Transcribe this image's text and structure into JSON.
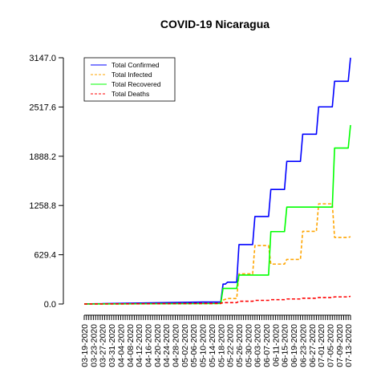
{
  "chart_data": {
    "type": "line",
    "title": "COVID-19 Nicaragua",
    "xlabel": "",
    "ylabel": "",
    "ylim": [
      0,
      3147.0
    ],
    "yticks": [
      "0.0",
      "629.4",
      "1258.8",
      "1888.2",
      "2517.6",
      "3147.0"
    ],
    "ytick_values": [
      0,
      629.4,
      1258.8,
      1888.2,
      2517.6,
      3147.0
    ],
    "x_tick_labels": [
      "03-19-2020",
      "03-23-2020",
      "03-27-2020",
      "03-31-2020",
      "04-04-2020",
      "04-08-2020",
      "04-12-2020",
      "04-16-2020",
      "04-20-2020",
      "04-24-2020",
      "04-28-2020",
      "05-02-2020",
      "05-06-2020",
      "05-10-2020",
      "05-14-2020",
      "05-18-2020",
      "05-22-2020",
      "05-26-2020",
      "05-30-2020",
      "06-03-2020",
      "06-07-2020",
      "06-11-2020",
      "06-15-2020",
      "06-19-2020",
      "06-23-2020",
      "06-27-2020",
      "07-01-2020",
      "07-05-2020",
      "07-09-2020",
      "07-13-2020"
    ],
    "x_range": [
      "03-19-2020",
      "07-14-2020"
    ],
    "grid": false,
    "legend_position": "top-left",
    "series": [
      {
        "name": "Total Confirmed",
        "color": "#0000ff",
        "style": "solid",
        "points": [
          [
            "03-19-2020",
            1
          ],
          [
            "05-10-2020",
            25
          ],
          [
            "05-18-2020",
            25
          ],
          [
            "05-19-2020",
            254
          ],
          [
            "05-20-2020",
            254
          ],
          [
            "05-21-2020",
            279
          ],
          [
            "05-25-2020",
            279
          ],
          [
            "05-26-2020",
            759
          ],
          [
            "06-01-2020",
            759
          ],
          [
            "06-02-2020",
            1118
          ],
          [
            "06-08-2020",
            1118
          ],
          [
            "06-09-2020",
            1464
          ],
          [
            "06-15-2020",
            1464
          ],
          [
            "06-16-2020",
            1823
          ],
          [
            "06-22-2020",
            1823
          ],
          [
            "06-23-2020",
            2170
          ],
          [
            "06-29-2020",
            2170
          ],
          [
            "06-30-2020",
            2519
          ],
          [
            "07-06-2020",
            2519
          ],
          [
            "07-07-2020",
            2846
          ],
          [
            "07-13-2020",
            2846
          ],
          [
            "07-14-2020",
            3147
          ]
        ]
      },
      {
        "name": "Total Infected",
        "color": "#ffa500",
        "style": "dashed",
        "points": [
          [
            "03-19-2020",
            1
          ],
          [
            "05-18-2020",
            5
          ],
          [
            "05-19-2020",
            50
          ],
          [
            "05-21-2020",
            70
          ],
          [
            "05-25-2020",
            70
          ],
          [
            "05-26-2020",
            385
          ],
          [
            "06-01-2020",
            385
          ],
          [
            "06-02-2020",
            746
          ],
          [
            "06-08-2020",
            746
          ],
          [
            "06-09-2020",
            510
          ],
          [
            "06-15-2020",
            510
          ],
          [
            "06-16-2020",
            570
          ],
          [
            "06-22-2020",
            570
          ],
          [
            "06-23-2020",
            928
          ],
          [
            "06-29-2020",
            928
          ],
          [
            "06-30-2020",
            1280
          ],
          [
            "07-06-2020",
            1280
          ],
          [
            "07-07-2020",
            850
          ],
          [
            "07-13-2020",
            850
          ],
          [
            "07-14-2020",
            860
          ]
        ]
      },
      {
        "name": "Total Recovered",
        "color": "#00ff00",
        "style": "solid",
        "points": [
          [
            "03-19-2020",
            0
          ],
          [
            "05-18-2020",
            7
          ],
          [
            "05-19-2020",
            199
          ],
          [
            "05-25-2020",
            199
          ],
          [
            "05-26-2020",
            370
          ],
          [
            "06-08-2020",
            370
          ],
          [
            "06-09-2020",
            925
          ],
          [
            "06-15-2020",
            925
          ],
          [
            "06-16-2020",
            1238
          ],
          [
            "07-06-2020",
            1238
          ],
          [
            "07-07-2020",
            1993
          ],
          [
            "07-13-2020",
            1993
          ],
          [
            "07-14-2020",
            2287
          ]
        ]
      },
      {
        "name": "Total Deaths",
        "color": "#ff0000",
        "style": "dashed",
        "points": [
          [
            "03-19-2020",
            0
          ],
          [
            "05-18-2020",
            8
          ],
          [
            "05-19-2020",
            17
          ],
          [
            "05-25-2020",
            17
          ],
          [
            "05-26-2020",
            35
          ],
          [
            "06-01-2020",
            35
          ],
          [
            "06-02-2020",
            46
          ],
          [
            "06-08-2020",
            46
          ],
          [
            "06-09-2020",
            55
          ],
          [
            "06-15-2020",
            55
          ],
          [
            "06-16-2020",
            64
          ],
          [
            "06-22-2020",
            64
          ],
          [
            "06-23-2020",
            74
          ],
          [
            "06-29-2020",
            74
          ],
          [
            "06-30-2020",
            83
          ],
          [
            "07-06-2020",
            83
          ],
          [
            "07-07-2020",
            91
          ],
          [
            "07-13-2020",
            91
          ],
          [
            "07-14-2020",
            99
          ]
        ]
      }
    ]
  }
}
